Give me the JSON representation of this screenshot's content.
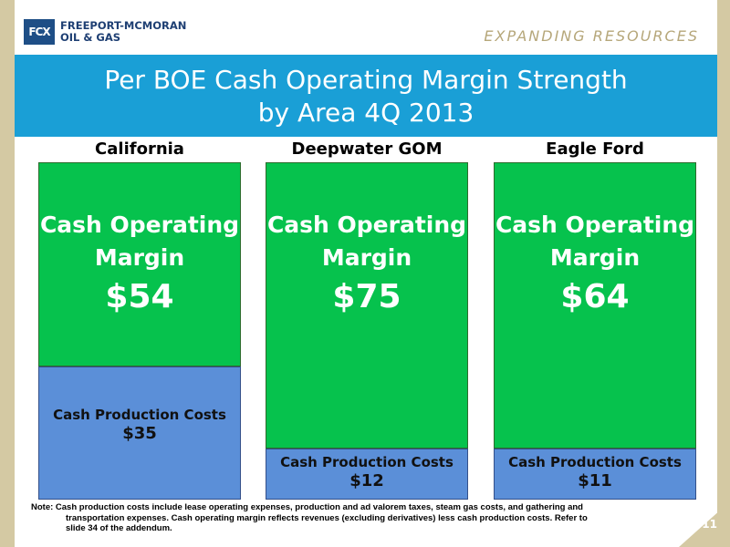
{
  "header": {
    "logo_mark": "FCX",
    "logo_line1": "FREEPORT-MCMORAN",
    "logo_line2": "OIL & GAS",
    "tagline": "EXPANDING RESOURCES"
  },
  "title_line1": "Per BOE Cash Operating Margin Strength",
  "title_line2": "by Area 4Q 2013",
  "colors": {
    "margin": "#06c24d",
    "cost": "#5b8fd8",
    "title_band": "#1a9fd6",
    "side": "#d4c9a3"
  },
  "chart_data": {
    "type": "bar",
    "stacked": true,
    "title": "Per BOE Cash Operating Margin Strength by Area 4Q 2013",
    "categories": [
      "California",
      "Deepwater GOM",
      "Eagle Ford"
    ],
    "series": [
      {
        "name": "Cash Production Costs",
        "values": [
          35,
          12,
          11
        ],
        "labels": [
          "$35",
          "$12",
          "$11"
        ]
      },
      {
        "name": "Cash Operating Margin",
        "values": [
          54,
          75,
          64
        ],
        "labels": [
          "$54",
          "$75",
          "$64"
        ]
      }
    ],
    "segment_text": {
      "margin_line1": "Cash Operating",
      "margin_line2": "Margin",
      "cost": "Cash Production Costs"
    }
  },
  "note": {
    "line1": "Note: Cash production costs include lease operating expenses, production and ad valorem taxes, steam gas costs, and gathering and",
    "line2": "transportation expenses. Cash operating margin reflects revenues (excluding derivatives) less cash production costs. Refer to",
    "line3": "slide 34 of the addendum."
  },
  "page_number": "11"
}
